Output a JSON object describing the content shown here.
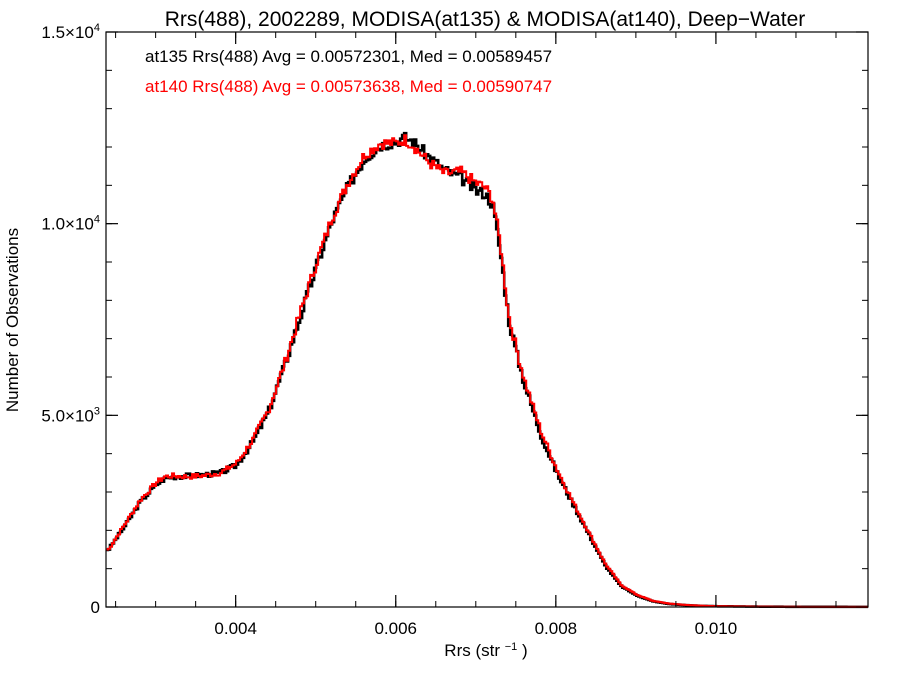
{
  "chart_data": {
    "type": "line",
    "style": "step histogram",
    "title": "Rrs(488), 2002289, MODISA(at135) & MODISA(at140), Deep−Water",
    "xlabel": "Rrs (str",
    "xlabel_sup": "−1",
    "xlabel_close": ")",
    "ylabel": "Number of Observations",
    "xlim": [
      0.00238,
      0.0119
    ],
    "ylim": [
      0,
      15000
    ],
    "x_ticks": [
      {
        "value": 0.004,
        "label": "0.004"
      },
      {
        "value": 0.006,
        "label": "0.006"
      },
      {
        "value": 0.008,
        "label": "0.008"
      },
      {
        "value": 0.01,
        "label": "0.010"
      }
    ],
    "y_ticks": [
      {
        "value": 0,
        "mant": "0",
        "exp": ""
      },
      {
        "value": 5000,
        "mant": "5.0×10",
        "exp": "3"
      },
      {
        "value": 10000,
        "mant": "1.0×10",
        "exp": "4"
      },
      {
        "value": 15000,
        "mant": "1.5×10",
        "exp": "4"
      }
    ],
    "x_minor_step": 0.0005,
    "y_minor_step": 1000,
    "grid": false,
    "legend": [
      {
        "text": "at135 Rrs(488) Avg = 0.00572301, Med = 0.00589457",
        "color": "#000000"
      },
      {
        "text": "at140 Rrs(488) Avg = 0.00573638, Med = 0.00590747",
        "color": "#ff0000"
      }
    ],
    "series": [
      {
        "name": "at135",
        "color": "#000000",
        "x": [
          0.0024,
          0.0026,
          0.0028,
          0.003,
          0.0031,
          0.0032,
          0.0034,
          0.0036,
          0.0038,
          0.004,
          0.0042,
          0.0044,
          0.0046,
          0.0048,
          0.005,
          0.0052,
          0.0054,
          0.0056,
          0.0058,
          0.006,
          0.0061,
          0.0062,
          0.0064,
          0.0066,
          0.0068,
          0.007,
          0.0071,
          0.0072,
          0.0073,
          0.0074,
          0.0075,
          0.0076,
          0.0078,
          0.008,
          0.0082,
          0.0084,
          0.0086,
          0.0088,
          0.009,
          0.0092,
          0.0094,
          0.0096,
          0.0098,
          0.01,
          0.0105,
          0.011,
          0.0119
        ],
        "y": [
          1500,
          2100,
          2750,
          3200,
          3350,
          3400,
          3420,
          3450,
          3500,
          3700,
          4300,
          5100,
          6300,
          7600,
          8900,
          10100,
          11000,
          11700,
          12050,
          12150,
          12250,
          12150,
          11750,
          11400,
          11200,
          10850,
          10800,
          10500,
          9200,
          7500,
          6600,
          5800,
          4500,
          3500,
          2700,
          1900,
          1100,
          550,
          300,
          150,
          80,
          50,
          30,
          20,
          10,
          5,
          3
        ]
      },
      {
        "name": "at140",
        "color": "#ff0000",
        "x": [
          0.0024,
          0.0026,
          0.0028,
          0.003,
          0.0031,
          0.0032,
          0.0034,
          0.0036,
          0.0038,
          0.004,
          0.0042,
          0.0044,
          0.0046,
          0.0048,
          0.005,
          0.0052,
          0.0054,
          0.0056,
          0.0058,
          0.006,
          0.0061,
          0.0062,
          0.0064,
          0.0066,
          0.0068,
          0.007,
          0.0071,
          0.0072,
          0.0073,
          0.0074,
          0.0075,
          0.0076,
          0.0078,
          0.008,
          0.0082,
          0.0084,
          0.0086,
          0.0088,
          0.009,
          0.0092,
          0.0094,
          0.0096,
          0.0098,
          0.01,
          0.0105,
          0.011,
          0.0119
        ],
        "y": [
          1500,
          2150,
          2800,
          3250,
          3400,
          3420,
          3400,
          3430,
          3500,
          3750,
          4350,
          5150,
          6350,
          7700,
          9000,
          10200,
          11100,
          11800,
          12100,
          12100,
          12200,
          12050,
          11600,
          11300,
          11350,
          11050,
          10950,
          10650,
          9400,
          7600,
          6700,
          5900,
          4600,
          3600,
          2750,
          1950,
          1150,
          580,
          320,
          160,
          90,
          55,
          35,
          20,
          10,
          5,
          3
        ]
      }
    ]
  }
}
